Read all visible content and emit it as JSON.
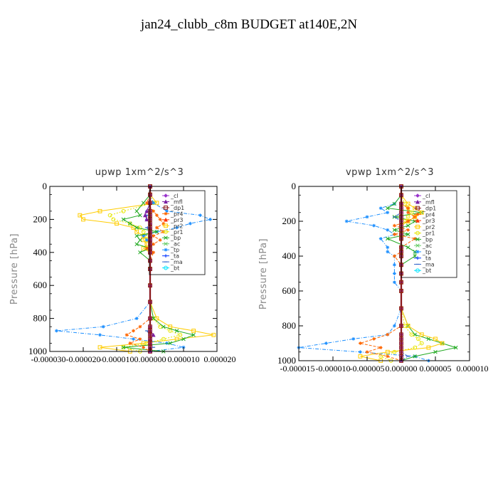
{
  "figure_title": "jan24_clubb_c8m  BUDGET at140E,2N",
  "colors": {
    "_cl": "#9933cc",
    "_mfl": "#7a1fa2",
    "_dp1": "#8b1a1a",
    "_pr4": "#ff6600",
    "_pr3": "#ff3300",
    "_pr2": "#ffcc00",
    "_pr1": "#e6e600",
    "_bp": "#22aa22",
    "_ac": "#66cc66",
    "_tp": "#1e90ff",
    "_ta": "#0033ff",
    "_ma": "#3366cc",
    "_bt": "#00e5ff"
  },
  "chart_data": [
    {
      "type": "line",
      "title": "upwp   1xm^2/s^3",
      "ylabel": "Pressure [hPa]",
      "xlim": [
        -3e-05,
        2e-05
      ],
      "ylim": [
        1000,
        0
      ],
      "x_tick_labels": [
        "-0.000030",
        "-0.000020",
        "-0.000010",
        "0.000000",
        "0.000010",
        "0.000020"
      ],
      "x_tick_values": [
        -3e-05,
        -2e-05,
        -1e-05,
        0,
        1e-05,
        2e-05
      ],
      "y_ticks": [
        0,
        200,
        400,
        600,
        800,
        1000
      ],
      "legend": [
        "_cl",
        "_mfl",
        "_dp1",
        "_pr4",
        "_pr3",
        "_pr2",
        "_pr1",
        "_bp",
        "_ac",
        "_tp",
        "_ta",
        "_ma",
        "_bt"
      ],
      "legend_position": "top-right",
      "y": [
        0,
        50,
        100,
        150,
        175,
        200,
        225,
        250,
        275,
        300,
        325,
        350,
        375,
        400,
        450,
        500,
        600,
        700,
        800,
        850,
        875,
        900,
        925,
        950,
        975,
        1000
      ],
      "series": [
        {
          "key": "_pr2",
          "x": [
            0,
            0,
            2e-06,
            -1.5e-05,
            -2.1e-05,
            -2e-05,
            -1e-05,
            -5e-06,
            -4e-06,
            -2e-06,
            -2e-06,
            -1e-06,
            -2e-06,
            0,
            0,
            0,
            0,
            0,
            2e-06,
            6e-06,
            1.3e-05,
            1.9e-05,
            8e-06,
            -2e-06,
            -1.5e-05,
            -6e-06
          ]
        },
        {
          "key": "_pr1",
          "x": [
            0,
            0,
            1e-06,
            -8e-06,
            -1.2e-05,
            -1.1e-05,
            -6e-06,
            -3e-06,
            -2e-06,
            -1e-06,
            -1e-06,
            0,
            -1e-06,
            0,
            0,
            0,
            0,
            0,
            1e-06,
            3e-06,
            6e-06,
            9e-06,
            4e-06,
            -1e-06,
            -8e-06,
            -3e-06
          ]
        },
        {
          "key": "_tp",
          "x": [
            0,
            0,
            1e-06,
            5e-06,
            1.5e-05,
            1.8e-05,
            1.2e-05,
            8e-06,
            2e-06,
            -2e-06,
            -1e-06,
            0,
            0,
            0,
            0,
            0,
            0,
            0,
            -4e-06,
            -1.4e-05,
            -2.8e-05,
            -1.5e-05,
            -5e-06,
            5e-06,
            1e-05,
            0
          ]
        },
        {
          "key": "_bp",
          "x": [
            0,
            0,
            -2e-06,
            -4e-06,
            -3e-06,
            -8e-06,
            -6e-06,
            -4e-06,
            2e-06,
            -4e-06,
            -3e-06,
            -4e-06,
            0,
            -3e-06,
            0,
            0,
            0,
            0,
            1e-06,
            4e-06,
            8e-06,
            1.3e-05,
            1e-05,
            6e-06,
            -8e-06,
            4e-06
          ]
        },
        {
          "key": "_pr4",
          "x": [
            0,
            0,
            -1e-06,
            1e-06,
            2e-06,
            3e-06,
            4e-06,
            2e-06,
            4e-06,
            1e-06,
            3e-06,
            1e-06,
            -1e-06,
            1e-06,
            0,
            0,
            0,
            0,
            0,
            -3e-06,
            -5e-06,
            -7e-06,
            -3e-06,
            -6e-06,
            -2e-06,
            0
          ]
        },
        {
          "key": "_ma",
          "x": [
            0,
            0,
            0,
            -1e-06,
            -1e-06,
            -1e-06,
            0,
            -1e-06,
            0,
            0,
            0,
            0,
            0,
            0,
            0,
            0,
            0,
            0,
            0,
            0,
            -1e-06,
            0,
            0,
            0,
            1e-06,
            0
          ]
        },
        {
          "key": "_mfl",
          "x": [
            0,
            0,
            0,
            -1e-06,
            -1.5e-06,
            -1e-06,
            0,
            0,
            0,
            0,
            0,
            0,
            0,
            0,
            0,
            0,
            0,
            0,
            0,
            0,
            0,
            1e-06,
            0,
            0,
            0,
            0
          ]
        },
        {
          "key": "_cl",
          "x": [
            0,
            0,
            0,
            0,
            0,
            0,
            0,
            0,
            0,
            0,
            0,
            0,
            0,
            0,
            0,
            0,
            0,
            0,
            0,
            0,
            0,
            0,
            0,
            0,
            0,
            0
          ]
        },
        {
          "key": "_dp1",
          "x": [
            0,
            0,
            0,
            0,
            0,
            0,
            0,
            0,
            0,
            0,
            0,
            0,
            0,
            0,
            0,
            0,
            0,
            0,
            0,
            0,
            0,
            0,
            0,
            0,
            0,
            0
          ]
        }
      ]
    },
    {
      "type": "line",
      "title": "vpwp   1xm^2/s^3",
      "ylabel": "Pressure [hPa]",
      "xlim": [
        -1.5e-05,
        1e-05
      ],
      "ylim": [
        1000,
        0
      ],
      "x_tick_labels": [
        "-0.000015",
        "-0.000010",
        "-0.000005",
        "0.000000",
        "0.000005",
        "0.000010"
      ],
      "x_tick_values": [
        -1.5e-05,
        -1e-05,
        -5e-06,
        0,
        5e-06,
        1e-05
      ],
      "y_ticks": [
        0,
        200,
        400,
        600,
        800,
        1000
      ],
      "legend": [
        "_cl",
        "_mfl",
        "_dp1",
        "_pr4",
        "_pr3",
        "_pr2",
        "_pr1",
        "_bp",
        "_ac",
        "_tp",
        "_ta",
        "_ma",
        "_bt"
      ],
      "legend_position": "top-right",
      "y": [
        0,
        50,
        100,
        125,
        150,
        175,
        200,
        225,
        250,
        275,
        300,
        350,
        375,
        400,
        450,
        500,
        550,
        600,
        700,
        800,
        850,
        875,
        900,
        925,
        950,
        975,
        1000
      ],
      "series": [
        {
          "key": "_tp",
          "x": [
            0,
            0,
            -1e-06,
            -3e-06,
            -2e-06,
            -5e-06,
            -8e-06,
            -4e-06,
            -2e-06,
            -1e-06,
            -3e-06,
            -2e-06,
            -2e-06,
            -1e-06,
            -1e-06,
            -1e-06,
            -1e-06,
            0,
            0,
            -1e-06,
            -2e-06,
            -7e-06,
            -1.1e-05,
            -1.5e-05,
            -6e-06,
            2e-06,
            4e-06
          ]
        },
        {
          "key": "_bp",
          "x": [
            0,
            0,
            -1e-06,
            -2e-06,
            3e-06,
            -1e-06,
            2e-06,
            1e-06,
            -1e-06,
            1e-06,
            -2e-06,
            1e-06,
            2e-06,
            2e-06,
            0,
            0,
            0,
            0,
            0,
            1e-06,
            2e-06,
            4e-06,
            6e-06,
            8e-06,
            5e-06,
            2e-06,
            0
          ]
        },
        {
          "key": "_pr2",
          "x": [
            0,
            0,
            1e-06,
            2e-06,
            3e-06,
            2e-06,
            1e-06,
            0,
            0,
            0,
            0,
            0,
            0,
            0,
            0,
            0,
            0,
            0,
            0,
            1e-06,
            3e-06,
            5e-06,
            6e-06,
            4e-06,
            -2e-06,
            -6e-06,
            -3e-06
          ]
        },
        {
          "key": "_pr1",
          "x": [
            0,
            0,
            5e-07,
            1e-06,
            1.5e-06,
            1e-06,
            5e-07,
            0,
            0,
            0,
            0,
            0,
            0,
            0,
            0,
            0,
            0,
            0,
            0,
            5e-07,
            1.5e-06,
            2.5e-06,
            3e-06,
            2e-06,
            -1e-06,
            -3e-06,
            -1.5e-06
          ]
        },
        {
          "key": "_pr4",
          "x": [
            0,
            0,
            0,
            1e-06,
            1e-06,
            2e-06,
            1e-06,
            -1e-06,
            1e-06,
            -1e-06,
            2e-06,
            0,
            0,
            -1e-06,
            0,
            0,
            0,
            0,
            0,
            0,
            -2e-06,
            -4e-06,
            -6e-06,
            -3e-06,
            -5e-06,
            -2e-06,
            0
          ]
        },
        {
          "key": "_ma",
          "x": [
            0,
            0,
            0,
            0,
            0,
            -1e-06,
            0,
            0,
            0,
            0,
            0,
            0,
            0,
            0,
            0,
            0,
            0,
            0,
            0,
            0,
            0,
            0,
            0,
            0,
            0,
            1e-06,
            0
          ]
        },
        {
          "key": "_cl",
          "x": [
            0,
            0,
            0,
            0,
            0,
            0,
            0,
            0,
            0,
            0,
            0,
            0,
            0,
            0,
            0,
            0,
            0,
            0,
            0,
            0,
            0,
            0,
            0,
            0,
            0,
            0,
            0
          ]
        },
        {
          "key": "_dp1",
          "x": [
            0,
            0,
            0,
            0,
            0,
            0,
            0,
            0,
            0,
            0,
            0,
            0,
            0,
            0,
            0,
            0,
            0,
            0,
            0,
            0,
            0,
            0,
            0,
            0,
            0,
            0,
            0
          ]
        }
      ]
    }
  ]
}
